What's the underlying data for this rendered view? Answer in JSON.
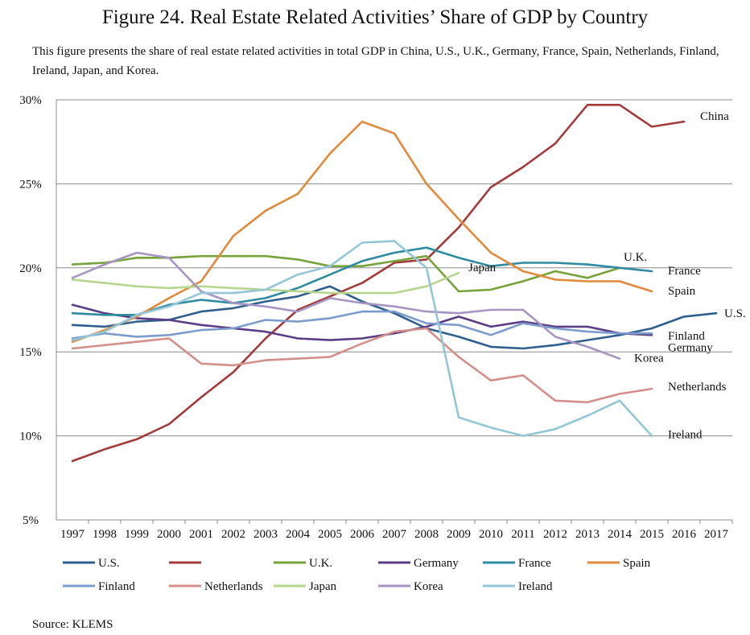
{
  "figure": {
    "title": "Figure 24. Real Estate Related Activities’ Share of GDP by Country",
    "description": "This figure presents the share of real estate related activities in total GDP in China, U.S., U.K., Germany, France, Spain, Netherlands, Finland, Ireland, Japan, and Korea.",
    "source": "Source: KLEMS"
  },
  "chart_data": {
    "type": "line",
    "title": "",
    "xlabel": "",
    "ylabel": "",
    "x": [
      1997,
      1998,
      1999,
      2000,
      2001,
      2002,
      2003,
      2004,
      2005,
      2006,
      2007,
      2008,
      2009,
      2010,
      2011,
      2012,
      2013,
      2014,
      2015,
      2016,
      2017
    ],
    "ylim": [
      5,
      30
    ],
    "yticks": [
      "5%",
      "10%",
      "15%",
      "20%",
      "25%",
      "30%"
    ],
    "ytick_values": [
      5,
      10,
      15,
      20,
      25,
      30
    ],
    "grid": "horizontal",
    "legend_position": "bottom",
    "series": [
      {
        "name": "U.S.",
        "legend": "U.S.",
        "label": "U.S.",
        "color": "#2e5f8f",
        "values": [
          16.6,
          16.5,
          16.8,
          16.9,
          17.4,
          17.6,
          18.0,
          18.3,
          18.9,
          18.0,
          17.3,
          16.4,
          15.9,
          15.3,
          15.2,
          15.4,
          15.7,
          16.0,
          16.4,
          17.1,
          17.3
        ]
      },
      {
        "name": "China",
        "legend": "",
        "label": "China",
        "color": "#a33b3b",
        "values": [
          8.5,
          9.2,
          9.8,
          10.7,
          12.3,
          13.8,
          15.8,
          17.5,
          18.3,
          19.1,
          20.3,
          20.5,
          22.4,
          24.8,
          26.0,
          27.4,
          29.7,
          29.7,
          28.4,
          28.7,
          null
        ]
      },
      {
        "name": "U.K.",
        "legend": "U.K.",
        "label": "U.K.",
        "color": "#77a33b",
        "values": [
          20.2,
          20.3,
          20.6,
          20.6,
          20.7,
          20.7,
          20.7,
          20.5,
          20.1,
          20.1,
          20.4,
          20.7,
          18.6,
          18.7,
          19.2,
          19.8,
          19.4,
          20.0,
          null,
          null,
          null
        ]
      },
      {
        "name": "Germany",
        "legend": "Germany",
        "label": "Germany",
        "color": "#5a3d85",
        "values": [
          17.8,
          17.3,
          17.0,
          16.9,
          16.6,
          16.4,
          16.2,
          15.8,
          15.7,
          15.8,
          16.1,
          16.5,
          17.1,
          16.5,
          16.8,
          16.5,
          16.5,
          16.1,
          16.0,
          null,
          null
        ]
      },
      {
        "name": "France",
        "legend": "France",
        "label": "France",
        "color": "#2e8ba0",
        "values": [
          17.3,
          17.2,
          17.2,
          17.8,
          18.1,
          17.9,
          18.2,
          18.8,
          19.6,
          20.4,
          20.9,
          21.2,
          20.6,
          20.1,
          20.3,
          20.3,
          20.2,
          20.0,
          19.8,
          null,
          null
        ]
      },
      {
        "name": "Spain",
        "legend": "Spain",
        "label": "Spain",
        "color": "#e08a3c",
        "values": [
          15.6,
          16.3,
          17.1,
          18.2,
          19.2,
          21.9,
          23.4,
          24.4,
          26.8,
          28.7,
          28.0,
          25.0,
          22.9,
          20.9,
          19.8,
          19.3,
          19.2,
          19.2,
          18.6,
          null,
          null
        ]
      },
      {
        "name": "Finland",
        "legend": "Finland",
        "label": "Finland",
        "color": "#7b9ccc",
        "values": [
          15.8,
          16.1,
          15.9,
          16.0,
          16.3,
          16.4,
          16.9,
          16.8,
          17.0,
          17.4,
          17.4,
          16.7,
          16.6,
          16.0,
          16.7,
          16.4,
          16.2,
          16.1,
          16.1,
          null,
          null
        ]
      },
      {
        "name": "Netherlands",
        "legend": "Netherlands",
        "label": "Netherlands",
        "color": "#d58f8b",
        "values": [
          15.2,
          15.4,
          15.6,
          15.8,
          14.3,
          14.2,
          14.5,
          14.6,
          14.7,
          15.5,
          16.2,
          16.4,
          14.7,
          13.3,
          13.6,
          12.1,
          12.0,
          12.5,
          12.8,
          null,
          null
        ]
      },
      {
        "name": "Japan",
        "legend": "Japan",
        "label": "Japan",
        "color": "#b6d58f",
        "values": [
          19.3,
          19.1,
          18.9,
          18.8,
          18.9,
          18.8,
          18.7,
          18.6,
          18.5,
          18.5,
          18.5,
          18.9,
          19.7,
          null,
          null,
          null,
          null,
          null,
          null,
          null,
          null
        ]
      },
      {
        "name": "Korea",
        "legend": "Korea",
        "label": "Korea",
        "color": "#a795c4",
        "values": [
          19.4,
          20.2,
          20.9,
          20.6,
          18.6,
          17.9,
          17.7,
          17.4,
          18.2,
          17.9,
          17.7,
          17.4,
          17.3,
          17.5,
          17.5,
          15.9,
          15.3,
          14.6,
          null,
          null,
          null
        ]
      },
      {
        "name": "Ireland",
        "legend": "Ireland",
        "label": "Ireland",
        "color": "#93c6d6",
        "values": [
          15.7,
          16.2,
          17.2,
          17.7,
          18.5,
          18.5,
          18.7,
          19.6,
          20.1,
          21.5,
          21.6,
          20.0,
          11.1,
          10.5,
          10.0,
          10.4,
          11.2,
          12.1,
          10.0,
          null,
          null
        ]
      }
    ]
  }
}
